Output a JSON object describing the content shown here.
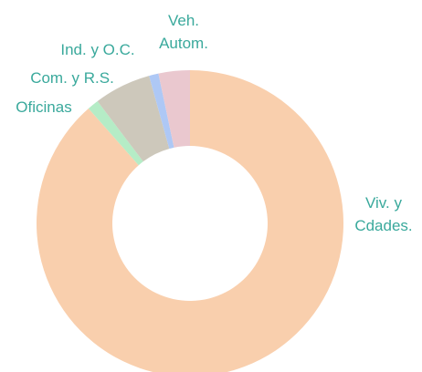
{
  "chart_data": {
    "type": "donut",
    "categories": [
      "Viv. y Cdades.",
      "Oficinas",
      "Com. y R.S.",
      "Ind. y O.C.",
      "Veh. Autom."
    ],
    "values": [
      88.5,
      1.2,
      6,
      1,
      3.3
    ],
    "colors": [
      "#f9cfad",
      "#b5ecc6",
      "#cdc8bb",
      "#aec8f5",
      "#eac8cf"
    ]
  }
}
